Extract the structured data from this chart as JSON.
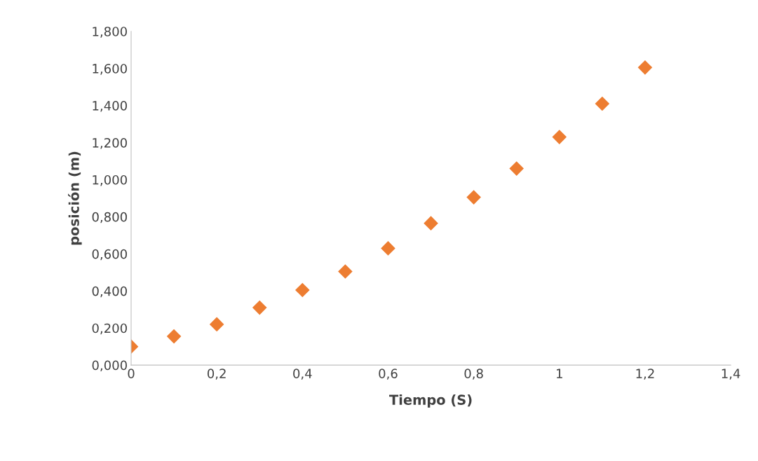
{
  "chart_data": {
    "type": "scatter",
    "xlabel": "Tiempo (S)",
    "ylabel": "posición (m)",
    "x": [
      0,
      0.1,
      0.2,
      0.3,
      0.4,
      0.5,
      0.6,
      0.7,
      0.8,
      0.9,
      1.0,
      1.1,
      1.2
    ],
    "series": [
      {
        "color": "#ed7d31",
        "values": [
          0.1,
          0.155,
          0.22,
          0.31,
          0.405,
          0.505,
          0.63,
          0.765,
          0.905,
          1.06,
          1.23,
          1.41,
          1.605
        ]
      }
    ],
    "marker": "diamond",
    "xlim": [
      0,
      1.4
    ],
    "xticks": [
      0,
      {
        "value": 0.2,
        "label": "0,2"
      },
      {
        "value": 0.4,
        "label": "0,4"
      },
      {
        "value": 0.6,
        "label": "0,6"
      },
      {
        "value": 0.8,
        "label": "0,8"
      },
      1,
      {
        "value": 1.2,
        "label": "1,2"
      },
      {
        "value": 1.4,
        "label": "1,4"
      }
    ],
    "ylim": [
      0,
      1.8
    ],
    "yticks": [
      {
        "value": 0,
        "label": "0,000"
      },
      {
        "value": 0.2,
        "label": "0,200"
      },
      {
        "value": 0.4,
        "label": "0,400"
      },
      {
        "value": 0.6,
        "label": "0,600"
      },
      {
        "value": 0.8,
        "label": "0,800"
      },
      {
        "value": 1.0,
        "label": "1,000"
      },
      {
        "value": 1.2,
        "label": "1,200"
      },
      {
        "value": 1.4,
        "label": "1,400"
      },
      {
        "value": 1.6,
        "label": "1,600"
      },
      {
        "value": 1.8,
        "label": "1,800"
      }
    ],
    "grid": false,
    "legend": false
  }
}
